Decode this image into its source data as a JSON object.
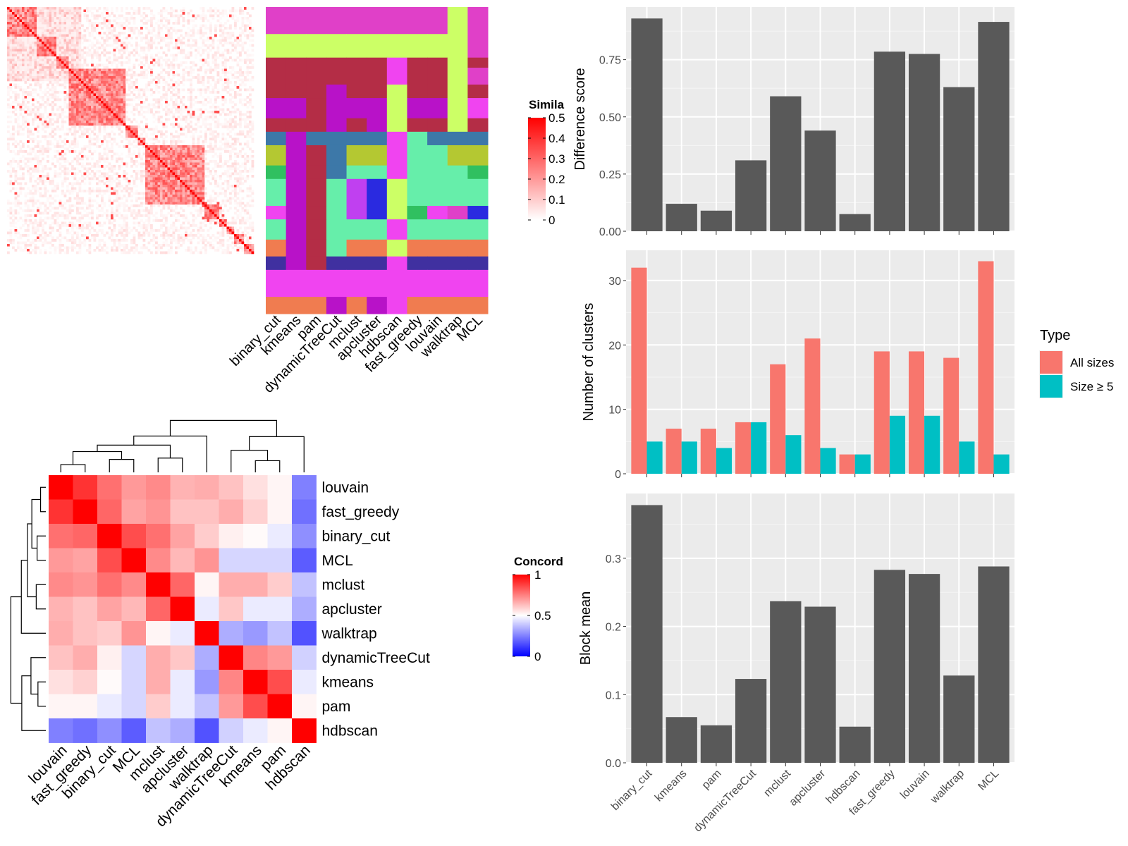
{
  "chart_data": [
    {
      "type": "heatmap",
      "title": "",
      "legend": {
        "title": "Similarity",
        "title_visible": "Simila",
        "ticks": [
          "0.5",
          "0.4",
          "0.3",
          "0.2",
          "0.1",
          "0"
        ],
        "range": [
          0,
          0.5
        ],
        "colors": {
          "low": "#ffffff",
          "high": "#ff0000"
        }
      }
    },
    {
      "type": "heatmap",
      "title": "",
      "columns": [
        "binary_cut",
        "kmeans",
        "pam",
        "dynamicTreeCut",
        "mclust",
        "apcluster",
        "hdbscan",
        "fast_greedy",
        "louvain",
        "walktrap",
        "MCL"
      ],
      "palette": [
        "#e040c8",
        "#ccff66",
        "#b42d46",
        "#b812c8",
        "#3d78a8",
        "#66eeaa",
        "#c040f0",
        "#2a2ae0",
        "#f07c50",
        "#f044f0",
        "#4030a0",
        "#b4c832",
        "#30c060"
      ],
      "blocks": [
        {
          "rows": 8,
          "cells": [
            0,
            0,
            0,
            0,
            0,
            0,
            0,
            0,
            0,
            1,
            0
          ]
        },
        {
          "rows": 7,
          "cells": [
            1,
            1,
            1,
            1,
            1,
            1,
            1,
            1,
            1,
            1,
            0
          ]
        },
        {
          "rows": 3,
          "cells": [
            2,
            2,
            2,
            2,
            2,
            2,
            9,
            2,
            2,
            1,
            2
          ]
        },
        {
          "rows": 5,
          "cells": [
            2,
            2,
            2,
            2,
            2,
            2,
            9,
            2,
            2,
            1,
            0
          ]
        },
        {
          "rows": 4,
          "cells": [
            2,
            2,
            2,
            3,
            2,
            2,
            1,
            2,
            2,
            1,
            2
          ]
        },
        {
          "rows": 6,
          "cells": [
            3,
            3,
            2,
            3,
            3,
            3,
            1,
            3,
            3,
            1,
            9
          ]
        },
        {
          "rows": 4,
          "cells": [
            2,
            2,
            2,
            3,
            2,
            3,
            1,
            2,
            2,
            1,
            2
          ]
        },
        {
          "rows": 4,
          "cells": [
            4,
            3,
            4,
            4,
            4,
            4,
            9,
            5,
            4,
            4,
            4
          ]
        },
        {
          "rows": 6,
          "cells": [
            11,
            3,
            2,
            4,
            11,
            11,
            9,
            5,
            5,
            11,
            11
          ]
        },
        {
          "rows": 4,
          "cells": [
            12,
            3,
            2,
            4,
            5,
            5,
            9,
            5,
            5,
            5,
            12
          ]
        },
        {
          "rows": 8,
          "cells": [
            5,
            3,
            2,
            5,
            6,
            7,
            1,
            5,
            5,
            5,
            5
          ]
        },
        {
          "rows": 4,
          "cells": [
            9,
            3,
            2,
            5,
            6,
            7,
            1,
            12,
            9,
            0,
            7
          ]
        },
        {
          "rows": 6,
          "cells": [
            5,
            3,
            2,
            5,
            5,
            5,
            9,
            5,
            5,
            5,
            5
          ]
        },
        {
          "rows": 5,
          "cells": [
            8,
            3,
            2,
            5,
            8,
            8,
            1,
            8,
            8,
            8,
            8
          ]
        },
        {
          "rows": 4,
          "cells": [
            10,
            3,
            2,
            10,
            10,
            10,
            9,
            10,
            10,
            10,
            10
          ]
        },
        {
          "rows": 8,
          "cells": [
            9,
            9,
            9,
            9,
            9,
            9,
            9,
            9,
            9,
            9,
            9
          ]
        },
        {
          "rows": 5,
          "cells": [
            8,
            8,
            8,
            3,
            8,
            3,
            9,
            8,
            8,
            8,
            8
          ]
        }
      ]
    },
    {
      "type": "heatmap",
      "title": "",
      "rows": [
        "louvain",
        "fast_greedy",
        "binary_cut",
        "MCL",
        "mclust",
        "apcluster",
        "walktrap",
        "dynamicTreeCut",
        "kmeans",
        "pam",
        "hdbscan"
      ],
      "columns": [
        "louvain",
        "fast_greedy",
        "binary_cut",
        "MCL",
        "mclust",
        "apcluster",
        "walktrap",
        "dynamicTreeCut",
        "kmeans",
        "pam",
        "hdbscan"
      ],
      "values": [
        [
          1.0,
          0.9,
          0.78,
          0.7,
          0.73,
          0.65,
          0.66,
          0.62,
          0.56,
          0.52,
          0.25
        ],
        [
          0.9,
          1.0,
          0.8,
          0.68,
          0.71,
          0.62,
          0.62,
          0.66,
          0.59,
          0.52,
          0.22
        ],
        [
          0.78,
          0.8,
          1.0,
          0.85,
          0.78,
          0.68,
          0.6,
          0.53,
          0.51,
          0.46,
          0.28
        ],
        [
          0.7,
          0.68,
          0.85,
          1.0,
          0.73,
          0.64,
          0.71,
          0.42,
          0.42,
          0.42,
          0.18
        ],
        [
          0.73,
          0.71,
          0.78,
          0.73,
          1.0,
          0.8,
          0.52,
          0.66,
          0.66,
          0.6,
          0.38
        ],
        [
          0.65,
          0.62,
          0.68,
          0.64,
          0.8,
          1.0,
          0.46,
          0.61,
          0.46,
          0.46,
          0.34
        ],
        [
          0.66,
          0.62,
          0.6,
          0.71,
          0.52,
          0.46,
          1.0,
          0.34,
          0.3,
          0.38,
          0.16
        ],
        [
          0.62,
          0.66,
          0.53,
          0.42,
          0.66,
          0.61,
          0.34,
          1.0,
          0.74,
          0.7,
          0.41
        ],
        [
          0.56,
          0.59,
          0.51,
          0.42,
          0.66,
          0.46,
          0.3,
          0.74,
          1.0,
          0.85,
          0.46
        ],
        [
          0.52,
          0.52,
          0.46,
          0.42,
          0.6,
          0.46,
          0.38,
          0.7,
          0.85,
          1.0,
          0.52
        ],
        [
          0.25,
          0.22,
          0.28,
          0.18,
          0.38,
          0.34,
          0.16,
          0.41,
          0.46,
          0.52,
          1.0
        ]
      ],
      "legend": {
        "title": "Concordance",
        "title_visible": "Concord",
        "ticks": [
          "1",
          "0.5",
          "0"
        ],
        "range": [
          0,
          1
        ],
        "colors": {
          "low": "#0000ff",
          "mid": "#ffffff",
          "high": "#ff0000"
        }
      }
    },
    {
      "type": "bar",
      "categories": [
        "binary_cut",
        "kmeans",
        "pam",
        "dynamicTreeCut",
        "mclust",
        "apcluster",
        "hdbscan",
        "fast_greedy",
        "louvain",
        "walktrap",
        "MCL"
      ],
      "values": [
        0.93,
        0.12,
        0.09,
        0.31,
        0.59,
        0.44,
        0.075,
        0.785,
        0.775,
        0.63,
        0.915
      ],
      "ylabel": "Difference score",
      "xlabel": "",
      "ylim": [
        0,
        0.98
      ],
      "yticks": [
        "0.00",
        "0.25",
        "0.50",
        "0.75"
      ],
      "ytick_values": [
        0,
        0.25,
        0.5,
        0.75
      ],
      "color": "#595959"
    },
    {
      "type": "bar",
      "categories": [
        "binary_cut",
        "kmeans",
        "pam",
        "dynamicTreeCut",
        "mclust",
        "apcluster",
        "hdbscan",
        "fast_greedy",
        "louvain",
        "walktrap",
        "MCL"
      ],
      "series": [
        {
          "name": "All sizes",
          "values": [
            32,
            7,
            7,
            8,
            17,
            21,
            3,
            19,
            19,
            18,
            33
          ],
          "color": "#f8766d"
        },
        {
          "name": "Size ≥ 5",
          "values": [
            5,
            5,
            4,
            8,
            6,
            4,
            3,
            9,
            9,
            5,
            3
          ],
          "color": "#00bfc4"
        }
      ],
      "ylabel": "Number of clusters",
      "xlabel": "",
      "ylim": [
        0,
        34.7
      ],
      "yticks": [
        "0",
        "10",
        "20",
        "30"
      ],
      "ytick_values": [
        0,
        10,
        20,
        30
      ],
      "legend": {
        "title": "Type",
        "position": "right"
      }
    },
    {
      "type": "bar",
      "categories": [
        "binary_cut",
        "kmeans",
        "pam",
        "dynamicTreeCut",
        "mclust",
        "apcluster",
        "hdbscan",
        "fast_greedy",
        "louvain",
        "walktrap",
        "MCL"
      ],
      "values": [
        0.378,
        0.067,
        0.055,
        0.123,
        0.237,
        0.229,
        0.053,
        0.283,
        0.277,
        0.128,
        0.288
      ],
      "ylabel": "Block mean",
      "xlabel": "",
      "ylim": [
        0,
        0.395
      ],
      "yticks": [
        "0.0",
        "0.1",
        "0.2",
        "0.3"
      ],
      "ytick_values": [
        0,
        0.1,
        0.2,
        0.3
      ],
      "color": "#595959"
    }
  ]
}
